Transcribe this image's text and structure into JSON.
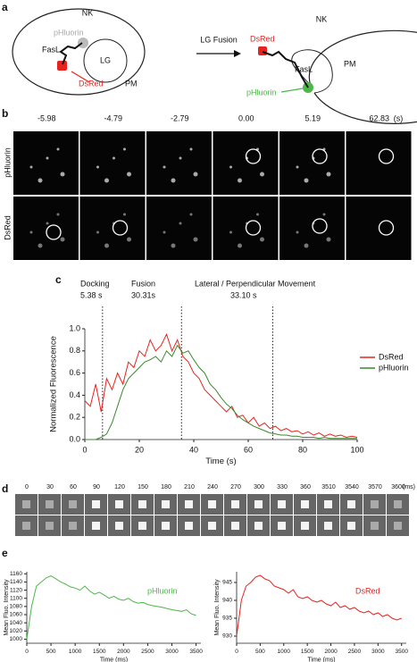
{
  "panel_labels": [
    "a",
    "b",
    "c",
    "d",
    "e"
  ],
  "diagram": {
    "left": {
      "cell": "NK",
      "marker_gray": "pHluorin",
      "ligand": "FasL",
      "granule": "LG",
      "membrane": "PM",
      "marker_red": "DsRed"
    },
    "arrow": "LG Fusion",
    "right": {
      "cell": "NK",
      "marker_red": "DsRed",
      "ligand": "FasL",
      "membrane": "PM",
      "marker_green": "pHluorin"
    }
  },
  "timelapse": {
    "times": [
      "-5.98",
      "-4.79",
      "-2.79",
      "0.00",
      "5.19",
      "62.83"
    ],
    "unit": "(s)",
    "rows": [
      "pHluorin",
      "DsRed"
    ]
  },
  "zoom": {
    "times": [
      "0",
      "30",
      "60",
      "90",
      "120",
      "150",
      "180",
      "210",
      "240",
      "270",
      "300",
      "330",
      "360",
      "3510",
      "3540",
      "3570",
      "3600"
    ],
    "unit": "(ms)"
  },
  "chart_data": [
    {
      "type": "line",
      "xlabel": "Time (s)",
      "ylabel": "Normalized Fluorescence",
      "annotations": [
        "Docking",
        "5.38 s",
        "Fusion",
        "30.31s",
        "Lateral / Perpendicular Movement",
        "33.10 s"
      ],
      "vlines": [
        6.5,
        35.5,
        69
      ],
      "xlim": [
        0,
        100
      ],
      "ylim": [
        0,
        1.0
      ],
      "xticks": [
        0,
        20,
        40,
        60,
        80,
        100
      ],
      "yticks": [
        {
          "value": 0,
          "label": "0.0"
        },
        {
          "value": 0.2,
          "label": "0.2"
        },
        {
          "value": 0.4,
          "label": "0.4"
        },
        {
          "value": 0.6,
          "label": "0.6"
        },
        {
          "value": 0.8,
          "label": "0.8"
        },
        {
          "value": 1.0,
          "label": "1.0"
        }
      ],
      "x": [
        0,
        2,
        4,
        6,
        8,
        10,
        12,
        14,
        16,
        18,
        20,
        22,
        24,
        26,
        28,
        30,
        32,
        34,
        36,
        38,
        40,
        42,
        44,
        46,
        48,
        50,
        52,
        54,
        56,
        58,
        60,
        62,
        64,
        66,
        68,
        70,
        72,
        74,
        76,
        78,
        80,
        82,
        84,
        86,
        88,
        90,
        92,
        94,
        96,
        98,
        100
      ],
      "series": [
        {
          "name": "DsRed",
          "color": "#e8231f",
          "values": [
            0.35,
            0.3,
            0.5,
            0.25,
            0.55,
            0.45,
            0.6,
            0.5,
            0.7,
            0.65,
            0.8,
            0.75,
            0.9,
            0.8,
            0.85,
            0.95,
            0.8,
            0.9,
            0.75,
            0.7,
            0.6,
            0.55,
            0.45,
            0.4,
            0.35,
            0.3,
            0.25,
            0.3,
            0.2,
            0.22,
            0.15,
            0.2,
            0.12,
            0.15,
            0.1,
            0.12,
            0.08,
            0.1,
            0.07,
            0.08,
            0.05,
            0.07,
            0.04,
            0.06,
            0.03,
            0.05,
            0.03,
            0.04,
            0.02,
            0.03,
            0.02
          ]
        },
        {
          "name": "pHluorin",
          "color": "#3a8a2e",
          "values": [
            0,
            0,
            0,
            0.02,
            0.05,
            0.15,
            0.3,
            0.45,
            0.55,
            0.6,
            0.65,
            0.7,
            0.72,
            0.75,
            0.7,
            0.8,
            0.75,
            0.85,
            0.78,
            0.8,
            0.72,
            0.65,
            0.6,
            0.5,
            0.45,
            0.38,
            0.32,
            0.28,
            0.22,
            0.18,
            0.15,
            0.12,
            0.1,
            0.08,
            0.06,
            0.05,
            0.04,
            0.04,
            0.03,
            0.03,
            0.02,
            0.02,
            0.02,
            0.01,
            0.02,
            0.01,
            0.01,
            0.01,
            0.01,
            0.01,
            0.01
          ]
        }
      ]
    },
    {
      "type": "line",
      "xlabel": "Time (ms)",
      "ylabel": "Mean Fluo. Intensity",
      "xlim": [
        0,
        3600
      ],
      "ylim": [
        990,
        1165
      ],
      "xticks": [
        0,
        500,
        1000,
        1500,
        2000,
        2500,
        3000,
        3500
      ],
      "yticks": [
        1000,
        1020,
        1040,
        1060,
        1080,
        1100,
        1120,
        1140,
        1160
      ],
      "x": [
        0,
        100,
        200,
        300,
        400,
        500,
        600,
        700,
        800,
        900,
        1000,
        1100,
        1200,
        1300,
        1400,
        1500,
        1600,
        1700,
        1800,
        1900,
        2000,
        2100,
        2200,
        2300,
        2400,
        2500,
        2600,
        2700,
        2800,
        2900,
        3000,
        3100,
        3200,
        3300,
        3400,
        3500
      ],
      "series": [
        {
          "name": "pHluorin",
          "color": "#4cb847",
          "values": [
            1000,
            1080,
            1130,
            1140,
            1150,
            1155,
            1148,
            1140,
            1135,
            1128,
            1125,
            1120,
            1130,
            1118,
            1110,
            1115,
            1108,
            1100,
            1105,
            1098,
            1095,
            1100,
            1092,
            1088,
            1090,
            1085,
            1082,
            1080,
            1078,
            1075,
            1072,
            1070,
            1068,
            1072,
            1062,
            1058
          ]
        }
      ]
    },
    {
      "type": "line",
      "xlabel": "Time (ms)",
      "ylabel": "Mean Fluo. Intensity",
      "xlim": [
        0,
        3600
      ],
      "ylim": [
        928,
        948
      ],
      "xticks": [
        0,
        500,
        1000,
        1500,
        2000,
        2500,
        3000,
        3500
      ],
      "yticks": [
        930,
        935,
        940,
        945
      ],
      "x": [
        0,
        100,
        200,
        300,
        400,
        500,
        600,
        700,
        800,
        900,
        1000,
        1100,
        1200,
        1300,
        1400,
        1500,
        1600,
        1700,
        1800,
        1900,
        2000,
        2100,
        2200,
        2300,
        2400,
        2500,
        2600,
        2700,
        2800,
        2900,
        3000,
        3100,
        3200,
        3300,
        3400,
        3500
      ],
      "series": [
        {
          "name": "DsRed",
          "color": "#e8231f",
          "values": [
            930,
            940,
            944,
            945,
            946.5,
            947,
            946,
            945.5,
            944,
            943.5,
            943,
            942,
            943,
            941,
            940.5,
            941,
            940,
            939.5,
            940,
            939,
            938.5,
            939.5,
            938,
            938.5,
            937.5,
            938,
            937,
            936.5,
            937,
            936,
            936.5,
            935.5,
            936,
            935,
            934.5,
            935
          ]
        }
      ]
    }
  ]
}
